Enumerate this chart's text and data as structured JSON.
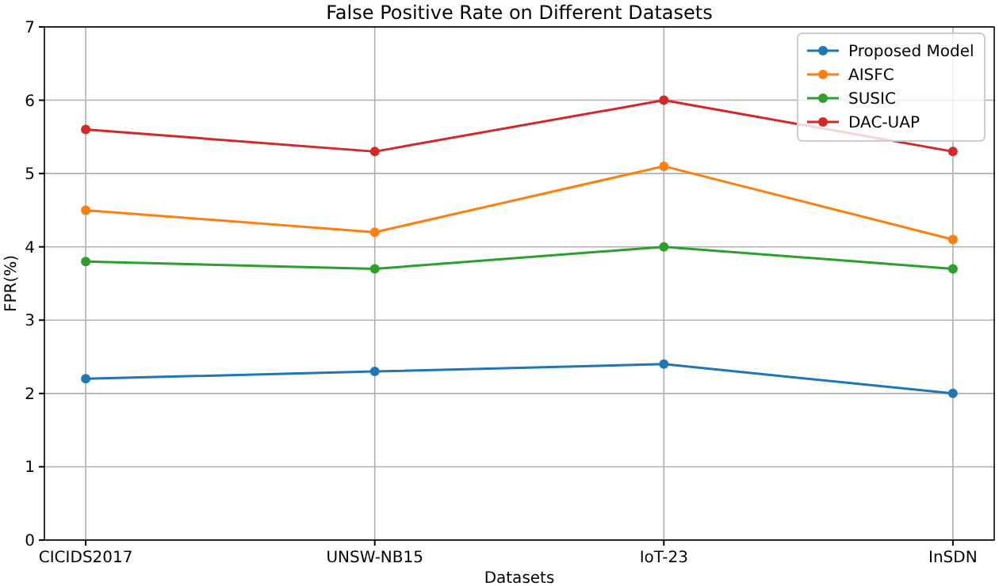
{
  "chart_data": {
    "type": "line",
    "title": "False Positive Rate on Different Datasets",
    "xlabel": "Datasets",
    "ylabel": "FPR(%)",
    "categories": [
      "CICIDS2017",
      "UNSW-NB15",
      "IoT-23",
      "InSDN"
    ],
    "series": [
      {
        "name": "Proposed Model",
        "color": "#1f77b4",
        "values": [
          2.2,
          2.3,
          2.4,
          2.0
        ]
      },
      {
        "name": "AISFC",
        "color": "#ff7f0e",
        "values": [
          4.5,
          4.2,
          5.1,
          4.1
        ]
      },
      {
        "name": "SUSIC",
        "color": "#2ca02c",
        "values": [
          3.8,
          3.7,
          4.0,
          3.7
        ]
      },
      {
        "name": "DAC-UAP",
        "color": "#d62728",
        "values": [
          5.6,
          5.3,
          6.0,
          5.3
        ]
      }
    ],
    "ylim": [
      0,
      7
    ],
    "yticks": [
      0,
      1,
      2,
      3,
      4,
      5,
      6,
      7
    ],
    "grid": true,
    "legend": "top right",
    "marker": "circle",
    "line_style": "solid"
  }
}
